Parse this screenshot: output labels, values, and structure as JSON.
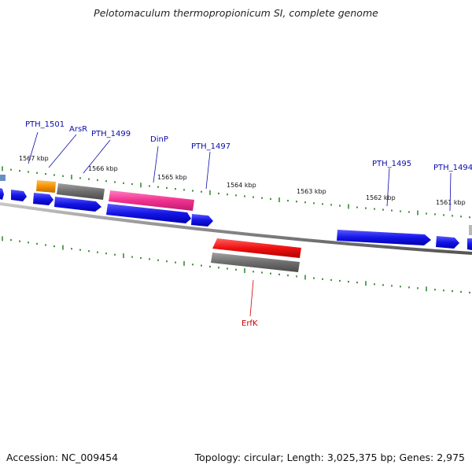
{
  "header": {
    "title": "Pelotomaculum thermopropionicum SI, complete genome"
  },
  "footer": {
    "accession": "Accession: NC_009454",
    "stats": "Topology: circular; Length: 3,025,375 bp; Genes: 2,975"
  },
  "ruler": {
    "labels": [
      "1567 kbp",
      "1566 kbp",
      "1565 kbp",
      "1564 kbp",
      "1563 kbp",
      "1562 kbp",
      "1561 kbp"
    ]
  },
  "gene_labels": [
    {
      "name": "PTH_1501",
      "color": "#0b0baa"
    },
    {
      "name": "ArsR",
      "color": "#0b0baa"
    },
    {
      "name": "PTH_1499",
      "color": "#0b0baa"
    },
    {
      "name": "DinP",
      "color": "#0b0baa"
    },
    {
      "name": "PTH_1497",
      "color": "#0b0baa"
    },
    {
      "name": "PTH_1495",
      "color": "#0b0baa"
    },
    {
      "name": "PTH_1494",
      "color": "#0b0baa"
    },
    {
      "name": "ErfK",
      "color": "#cc0000"
    }
  ],
  "feature_colors": {
    "cds_forward": "#1414e6",
    "orange": "#f39200",
    "grey": "#6e6e6e",
    "pink": "#f0308f",
    "red": "#ee1010",
    "tick": "#1a7a1a",
    "backbone": "#8c8c8c"
  }
}
